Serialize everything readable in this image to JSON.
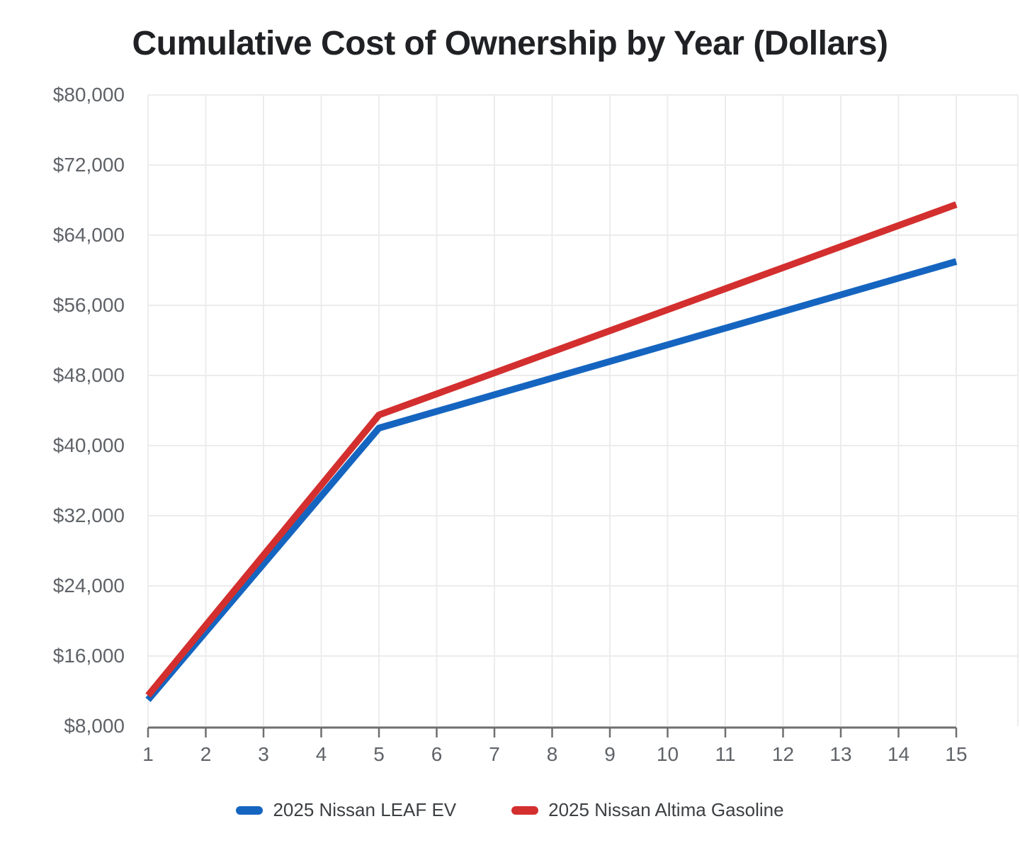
{
  "title": "Cumulative Cost of Ownership by Year (Dollars)",
  "colors": {
    "background": "#ffffff",
    "grid": "#ececec",
    "axis": "#6f6f6f",
    "tick_label": "#5f6368",
    "title_text": "#202124",
    "legend_text": "#3c4043",
    "leaf_blue": "#1565c0",
    "altima_red": "#d32f2f"
  },
  "chart_data": {
    "type": "line",
    "title": "Cumulative Cost of Ownership by Year (Dollars)",
    "xlabel": "",
    "ylabel": "",
    "x": [
      1,
      2,
      3,
      4,
      5,
      6,
      7,
      8,
      9,
      10,
      11,
      12,
      13,
      14,
      15
    ],
    "xtick_labels": [
      "1",
      "2",
      "3",
      "4",
      "5",
      "6",
      "7",
      "8",
      "9",
      "10",
      "11",
      "12",
      "13",
      "14",
      "15"
    ],
    "ylim": [
      8000,
      80000
    ],
    "yticks": [
      {
        "value": 8000,
        "label": "$8,000"
      },
      {
        "value": 16000,
        "label": "$16,000"
      },
      {
        "value": 24000,
        "label": "$24,000"
      },
      {
        "value": 32000,
        "label": "$32,000"
      },
      {
        "value": 40000,
        "label": "$40,000"
      },
      {
        "value": 48000,
        "label": "$48,000"
      },
      {
        "value": 56000,
        "label": "$56,000"
      },
      {
        "value": 64000,
        "label": "$64,000"
      },
      {
        "value": 72000,
        "label": "$72,000"
      },
      {
        "value": 80000,
        "label": "$80,000"
      }
    ],
    "grid": true,
    "legend_position": "bottom",
    "series": [
      {
        "name": "2025 Nissan LEAF EV",
        "color": "#1565c0",
        "values": [
          11000,
          18750,
          26500,
          34250,
          42000,
          43900,
          45800,
          47700,
          49600,
          51500,
          53400,
          55300,
          57200,
          59100,
          61000
        ]
      },
      {
        "name": "2025 Nissan Altima Gasoline",
        "color": "#d32f2f",
        "values": [
          11500,
          19500,
          27500,
          35500,
          43500,
          45900,
          48300,
          50700,
          53100,
          55500,
          57900,
          60300,
          62700,
          65100,
          67500
        ]
      }
    ]
  }
}
